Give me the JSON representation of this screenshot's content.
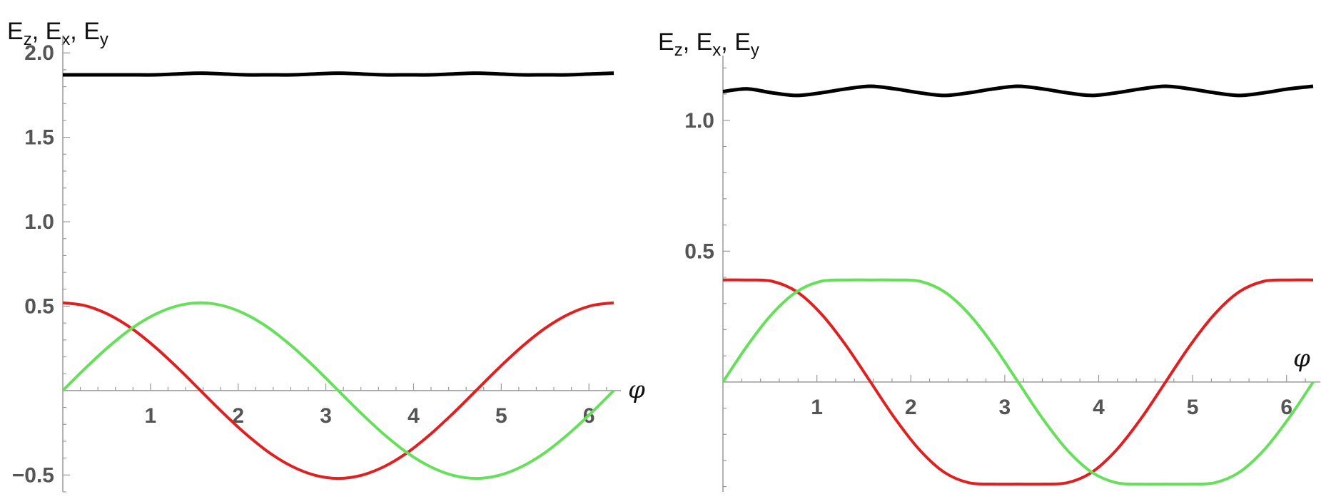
{
  "chart_data": [
    {
      "type": "line",
      "ylabel_parts": {
        "base": "E",
        "subs": [
          "z",
          "x",
          "y"
        ],
        "sep": ", "
      },
      "xlabel": "φ",
      "xlim": [
        0,
        6.2832
      ],
      "ylim": [
        -0.6,
        2.06
      ],
      "xticks": [
        1,
        2,
        3,
        4,
        5,
        6
      ],
      "yticks": [
        {
          "v": 2.0,
          "label": "2.0"
        },
        {
          "v": 1.5,
          "label": "1.5"
        },
        {
          "v": 1.0,
          "label": "1.0"
        },
        {
          "v": 0.5,
          "label": "0.5"
        },
        {
          "v": -0.5,
          "label": "−0.5"
        }
      ],
      "x": [
        0,
        0.2618,
        0.5236,
        0.7854,
        1.0472,
        1.309,
        1.5708,
        1.8326,
        2.0944,
        2.3562,
        2.618,
        2.8798,
        3.1416,
        3.4034,
        3.6652,
        3.927,
        4.1888,
        4.4506,
        4.7124,
        4.9742,
        5.236,
        5.4978,
        5.7596,
        6.0214,
        6.2832
      ],
      "series": [
        {
          "color": "#000000",
          "values": [
            1.87,
            1.87,
            1.87,
            1.87,
            1.87,
            1.875,
            1.88,
            1.875,
            1.87,
            1.87,
            1.87,
            1.875,
            1.88,
            1.875,
            1.87,
            1.87,
            1.87,
            1.875,
            1.88,
            1.875,
            1.87,
            1.87,
            1.87,
            1.875,
            1.88
          ]
        },
        {
          "color": "#e02020",
          "values": [
            0.52,
            0.502,
            0.45,
            0.368,
            0.26,
            0.135,
            0.0,
            -0.135,
            -0.26,
            -0.368,
            -0.45,
            -0.502,
            -0.52,
            -0.502,
            -0.45,
            -0.368,
            -0.26,
            -0.135,
            0.0,
            0.135,
            0.26,
            0.368,
            0.45,
            0.502,
            0.52
          ]
        },
        {
          "color": "#66e05a",
          "values": [
            0.0,
            0.135,
            0.26,
            0.368,
            0.45,
            0.502,
            0.52,
            0.502,
            0.45,
            0.368,
            0.26,
            0.135,
            0.0,
            -0.135,
            -0.26,
            -0.368,
            -0.45,
            -0.502,
            -0.52,
            -0.502,
            -0.45,
            -0.368,
            -0.26,
            -0.135,
            0.0
          ]
        }
      ]
    },
    {
      "type": "line",
      "ylabel_parts": {
        "base": "E",
        "subs": [
          "z",
          "x",
          "y"
        ],
        "sep": ", "
      },
      "xlabel": "φ",
      "xlim": [
        0,
        6.2832
      ],
      "ylim": [
        -0.42,
        1.22
      ],
      "xticks": [
        1,
        2,
        3,
        4,
        5,
        6
      ],
      "yticks": [
        {
          "v": 1.0,
          "label": "1.0"
        },
        {
          "v": 0.5,
          "label": "0.5"
        }
      ],
      "x": [
        0,
        0.2618,
        0.5236,
        0.7854,
        1.0472,
        1.309,
        1.5708,
        1.8326,
        2.0944,
        2.3562,
        2.618,
        2.8798,
        3.1416,
        3.4034,
        3.6652,
        3.927,
        4.1888,
        4.4506,
        4.7124,
        4.9742,
        5.236,
        5.4978,
        5.7596,
        6.0214,
        6.2832
      ],
      "series": [
        {
          "color": "#000000",
          "values": [
            1.11,
            1.12,
            1.105,
            1.095,
            1.105,
            1.12,
            1.13,
            1.12,
            1.105,
            1.095,
            1.105,
            1.12,
            1.13,
            1.12,
            1.105,
            1.095,
            1.105,
            1.12,
            1.13,
            1.12,
            1.105,
            1.095,
            1.105,
            1.12,
            1.13
          ]
        },
        {
          "color": "#e02020",
          "values": [
            0.39,
            0.39,
            0.385,
            0.345,
            0.26,
            0.14,
            0.0,
            -0.14,
            -0.26,
            -0.345,
            -0.385,
            -0.39,
            -0.39,
            -0.39,
            -0.385,
            -0.345,
            -0.26,
            -0.14,
            0.0,
            0.14,
            0.26,
            0.345,
            0.385,
            0.39,
            0.39
          ]
        },
        {
          "color": "#66e05a",
          "values": [
            0.0,
            0.14,
            0.26,
            0.345,
            0.385,
            0.39,
            0.39,
            0.39,
            0.385,
            0.345,
            0.26,
            0.14,
            0.0,
            -0.14,
            -0.26,
            -0.345,
            -0.385,
            -0.39,
            -0.39,
            -0.39,
            -0.385,
            -0.345,
            -0.26,
            -0.14,
            0.0
          ]
        }
      ]
    }
  ]
}
